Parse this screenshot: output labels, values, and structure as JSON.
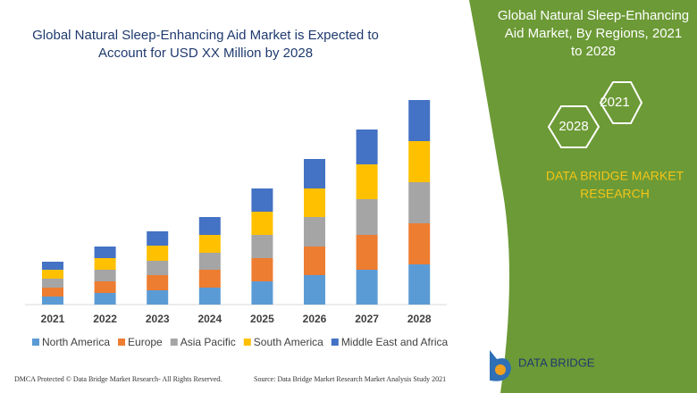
{
  "chart_data": {
    "type": "stacked_bar",
    "title": "Global Natural Sleep-Enhancing Aid Market is Expected to Account for USD XX Million by 2028",
    "categories": [
      "2021",
      "2022",
      "2023",
      "2024",
      "2025",
      "2026",
      "2027",
      "2028"
    ],
    "series": [
      {
        "name": "North America",
        "color": "#5b9bd5",
        "values": [
          9,
          13,
          16,
          19,
          26,
          33,
          39,
          45
        ]
      },
      {
        "name": "Europe",
        "color": "#ed7d31",
        "values": [
          10,
          13,
          17,
          20,
          26,
          32,
          39,
          46
        ]
      },
      {
        "name": "Asia Pacific",
        "color": "#a5a5a5",
        "values": [
          10,
          13,
          16,
          19,
          26,
          33,
          40,
          46
        ]
      },
      {
        "name": "South America",
        "color": "#ffc000",
        "values": [
          10,
          13,
          17,
          20,
          26,
          32,
          39,
          46
        ]
      },
      {
        "name": "Middle East and Africa",
        "color": "#4472c4",
        "values": [
          9,
          13,
          16,
          20,
          26,
          33,
          39,
          46
        ]
      }
    ]
  },
  "side_panel": {
    "title": "Global Natural Sleep-Enhancing Aid Market, By Regions, 2021 to 2028",
    "badges": [
      "2021",
      "2028"
    ],
    "brand": "DATA BRIDGE MARKET RESEARCH"
  },
  "footer": {
    "dmca": "DMCA Protected © Data Bridge Market Research- All Rights Reserved.",
    "source": "Source: Data Bridge Market Research Market Analysis Study 2021"
  },
  "logo": {
    "text": "DATA BRIDGE"
  }
}
